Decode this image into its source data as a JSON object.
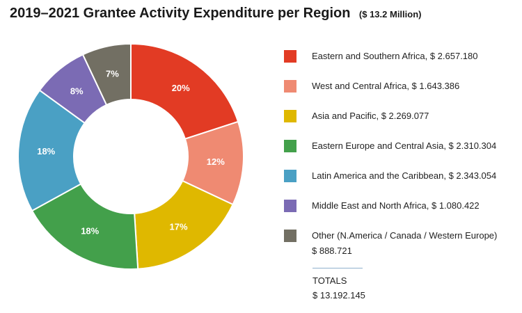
{
  "title": "2019–2021 Grantee Activity Expenditure per Region",
  "subtitle": "($ 13.2 Million)",
  "totals": {
    "label": "TOTALS",
    "value": "$ 13.192.145"
  },
  "chart_data": {
    "type": "pie",
    "title": "2019–2021 Grantee Activity Expenditure per Region",
    "subtitle": "($ 13.2 Million)",
    "legend_position": "right",
    "slices": [
      {
        "label": "Eastern and Southern Africa",
        "amount": "$ 2.657.180",
        "legend": "Eastern and Southern Africa, $ 2.657.180",
        "value": 20,
        "pct_label": "20%",
        "color": "#e23b24"
      },
      {
        "label": "West and Central Africa",
        "amount": "$ 1.643.386",
        "legend": "West and Central Africa, $ 1.643.386",
        "value": 12,
        "pct_label": "12%",
        "color": "#ef8a72"
      },
      {
        "label": "Asia and Pacific",
        "amount": "$ 2.269.077",
        "legend": "Asia and Pacific, $ 2.269.077",
        "value": 17,
        "pct_label": "17%",
        "color": "#dfb800"
      },
      {
        "label": "Eastern Europe and Central Asia",
        "amount": "$ 2.310.304",
        "legend": "Eastern Europe and Central Asia, $ 2.310.304",
        "value": 18,
        "pct_label": "18%",
        "color": "#43a04b"
      },
      {
        "label": "Latin America and the Caribbean",
        "amount": "$ 2.343.054",
        "legend": "Latin America and the Caribbean, $ 2.343.054",
        "value": 18,
        "pct_label": "18%",
        "color": "#4aa0c4"
      },
      {
        "label": "Middle East and North Africa",
        "amount": "$ 1.080.422",
        "legend": "Middle East and North Africa, $ 1.080.422",
        "value": 8,
        "pct_label": "8%",
        "color": "#7b6bb4"
      },
      {
        "label": "Other (N.America / Canada / Western Europe)",
        "amount": "$ 888.721",
        "legend": "Other (N.America / Canada / Western Europe)",
        "legend_value": "$ 888.721",
        "value": 7,
        "pct_label": "7%",
        "color": "#726f63"
      }
    ]
  }
}
